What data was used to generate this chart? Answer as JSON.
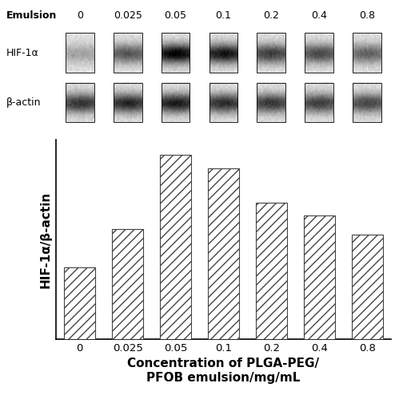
{
  "categories": [
    "0",
    "0.025",
    "0.05",
    "0.1",
    "0.2",
    "0.4",
    "0.8"
  ],
  "values": [
    0.38,
    0.58,
    0.97,
    0.9,
    0.72,
    0.65,
    0.55
  ],
  "bar_color": "#ffffff",
  "bar_edgecolor": "#444444",
  "hatch": "///",
  "xlabel": "Concentration of PLGA-PEG/\nPFOB emulsion/mg/mL",
  "ylabel": "HIF-1α/β-actin",
  "xlabel_fontsize": 11,
  "ylabel_fontsize": 11,
  "tick_fontsize": 9.5,
  "ylim": [
    0,
    1.05
  ],
  "bar_width": 0.65,
  "top_label_emulsion": "Emulsion",
  "top_label_hif": "HIF-1α",
  "top_label_bactin": "β-actin",
  "background_color": "#ffffff",
  "figure_width": 4.99,
  "figure_height": 5.0,
  "dpi": 100,
  "hif_intensities": [
    0.25,
    0.55,
    0.9,
    0.82,
    0.65,
    0.6,
    0.5
  ],
  "bactin_intensities": [
    0.7,
    0.75,
    0.8,
    0.72,
    0.68,
    0.65,
    0.62
  ]
}
